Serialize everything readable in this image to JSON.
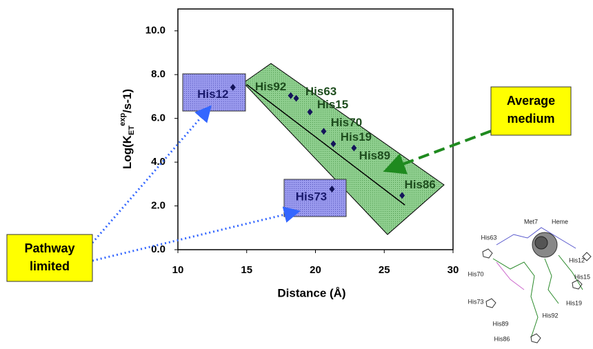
{
  "chart_data": {
    "type": "scatter",
    "x_label": "Distance (Å)",
    "y_label": {
      "main": "Log(K",
      "sub": "ET",
      "sup": "exp",
      "tail": "/s-1)"
    },
    "xlim": [
      10,
      30
    ],
    "xticks": [
      10,
      15,
      20,
      25,
      30
    ],
    "ylim": [
      0,
      11
    ],
    "yticks": [
      {
        "value": 0,
        "label": "0.0"
      },
      {
        "value": 2,
        "label": "2.0"
      },
      {
        "value": 4,
        "label": "4.0"
      },
      {
        "value": 6,
        "label": "6.0"
      },
      {
        "value": 8,
        "label": "8.0"
      },
      {
        "value": 10,
        "label": "10.0"
      }
    ],
    "series": [
      {
        "mode": "markers",
        "color": "#14145a",
        "labels": [
          "His12",
          "His92",
          "His63",
          "His15",
          "His70",
          "His19",
          "His89",
          "His73",
          "His86"
        ],
        "label_colors": [
          "#1a1a6e",
          "#1e4d1e",
          "#1e4d1e",
          "#1e4d1e",
          "#1e4d1e",
          "#1e4d1e",
          "#1e4d1e",
          "#1a1a6e",
          "#1e4d1e"
        ],
        "x": [
          14.0,
          18.2,
          18.6,
          19.6,
          20.6,
          21.3,
          22.8,
          21.2,
          26.3
        ],
        "values": [
          7.42,
          7.04,
          6.92,
          6.29,
          5.41,
          4.84,
          4.65,
          2.77,
          2.48
        ]
      },
      {
        "mode": "line",
        "color": "#000000",
        "x": [
          15.0,
          26.5
        ],
        "values": [
          7.55,
          2.04
        ]
      }
    ],
    "annotations": {
      "average": [
        "Average",
        "medium"
      ],
      "pathway": [
        "Pathway",
        "limited"
      ]
    },
    "inset_labels": [
      "Met7",
      "Heme",
      "His63",
      "His12",
      "His15",
      "His70",
      "His73",
      "His19",
      "His92",
      "His89",
      "His86"
    ]
  }
}
